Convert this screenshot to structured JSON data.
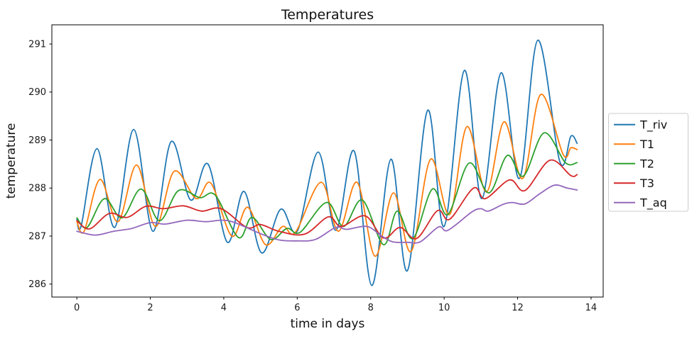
{
  "chart_data": {
    "type": "line",
    "title": "Temperatures",
    "xlabel": "time in days",
    "ylabel": "temperature",
    "xlim": [
      -0.68,
      14.33
    ],
    "ylim": [
      285.73,
      291.4
    ],
    "x_ticks": [
      0,
      2,
      4,
      6,
      8,
      10,
      12,
      14
    ],
    "y_ticks": [
      286,
      287,
      288,
      289,
      290,
      291
    ],
    "grid": false,
    "legend_position": "outside-center-right",
    "series": [
      {
        "name": "T_riv",
        "color": "#1f77b4",
        "points": [
          [
            0,
            287.35
          ],
          [
            0.12,
            287.22
          ],
          [
            0.55,
            288.82
          ],
          [
            1.03,
            287.18
          ],
          [
            1.55,
            289.22
          ],
          [
            2.07,
            287.1
          ],
          [
            2.57,
            288.97
          ],
          [
            3.1,
            287.75
          ],
          [
            3.57,
            288.5
          ],
          [
            4.1,
            286.87
          ],
          [
            4.55,
            287.93
          ],
          [
            5.03,
            286.65
          ],
          [
            5.55,
            287.56
          ],
          [
            6.0,
            287.1
          ],
          [
            6.57,
            288.75
          ],
          [
            7.05,
            287.12
          ],
          [
            7.55,
            288.77
          ],
          [
            8.03,
            285.97
          ],
          [
            8.55,
            288.6
          ],
          [
            9.0,
            286.28
          ],
          [
            9.55,
            289.62
          ],
          [
            10.0,
            287.2
          ],
          [
            10.55,
            290.45
          ],
          [
            11.02,
            287.78
          ],
          [
            11.55,
            290.4
          ],
          [
            12.05,
            288.2
          ],
          [
            12.55,
            291.08
          ],
          [
            13.15,
            288.55
          ],
          [
            13.45,
            289.08
          ],
          [
            13.62,
            288.93
          ]
        ]
      },
      {
        "name": "T1",
        "color": "#ff7f0e",
        "points": [
          [
            0,
            287.3
          ],
          [
            0.2,
            287.1
          ],
          [
            0.63,
            288.18
          ],
          [
            1.12,
            287.3
          ],
          [
            1.63,
            288.48
          ],
          [
            2.14,
            287.2
          ],
          [
            2.65,
            288.35
          ],
          [
            3.25,
            287.78
          ],
          [
            3.65,
            288.1
          ],
          [
            4.22,
            287.0
          ],
          [
            4.65,
            287.6
          ],
          [
            5.14,
            286.82
          ],
          [
            5.6,
            287.2
          ],
          [
            5.95,
            287.08
          ],
          [
            6.65,
            288.12
          ],
          [
            7.12,
            287.1
          ],
          [
            7.63,
            288.12
          ],
          [
            8.12,
            286.58
          ],
          [
            8.62,
            287.9
          ],
          [
            9.1,
            286.68
          ],
          [
            9.63,
            288.6
          ],
          [
            10.15,
            287.45
          ],
          [
            10.62,
            289.28
          ],
          [
            11.15,
            287.92
          ],
          [
            11.63,
            289.38
          ],
          [
            12.14,
            288.2
          ],
          [
            12.63,
            289.95
          ],
          [
            13.24,
            288.7
          ],
          [
            13.45,
            288.84
          ],
          [
            13.62,
            288.8
          ]
        ]
      },
      {
        "name": "T2",
        "color": "#2ca02c",
        "points": [
          [
            0,
            287.38
          ],
          [
            0.28,
            287.18
          ],
          [
            0.75,
            287.78
          ],
          [
            1.23,
            287.38
          ],
          [
            1.75,
            287.98
          ],
          [
            2.25,
            287.32
          ],
          [
            2.77,
            287.95
          ],
          [
            3.35,
            287.8
          ],
          [
            3.77,
            287.85
          ],
          [
            4.4,
            286.97
          ],
          [
            4.77,
            287.39
          ],
          [
            5.28,
            286.93
          ],
          [
            5.72,
            287.16
          ],
          [
            6.08,
            287.08
          ],
          [
            6.8,
            287.7
          ],
          [
            7.26,
            287.2
          ],
          [
            7.77,
            287.75
          ],
          [
            8.35,
            286.82
          ],
          [
            8.72,
            287.52
          ],
          [
            9.15,
            286.95
          ],
          [
            9.68,
            287.98
          ],
          [
            10.1,
            287.45
          ],
          [
            10.68,
            288.52
          ],
          [
            11.22,
            287.9
          ],
          [
            11.72,
            288.68
          ],
          [
            12.16,
            288.25
          ],
          [
            12.72,
            289.15
          ],
          [
            13.3,
            288.53
          ],
          [
            13.62,
            288.53
          ]
        ]
      },
      {
        "name": "T3",
        "color": "#d62728",
        "points": [
          [
            0,
            287.32
          ],
          [
            0.35,
            287.15
          ],
          [
            0.88,
            287.47
          ],
          [
            1.37,
            287.39
          ],
          [
            1.88,
            287.62
          ],
          [
            2.35,
            287.57
          ],
          [
            2.9,
            287.63
          ],
          [
            3.4,
            287.52
          ],
          [
            3.93,
            287.57
          ],
          [
            4.63,
            287.18
          ],
          [
            5.0,
            287.24
          ],
          [
            5.5,
            287.1
          ],
          [
            6.2,
            287.04
          ],
          [
            6.85,
            287.4
          ],
          [
            7.2,
            287.2
          ],
          [
            7.85,
            287.42
          ],
          [
            8.35,
            286.96
          ],
          [
            8.8,
            287.18
          ],
          [
            9.25,
            286.95
          ],
          [
            9.82,
            287.53
          ],
          [
            10.15,
            287.35
          ],
          [
            10.8,
            288.0
          ],
          [
            11.12,
            287.78
          ],
          [
            11.78,
            288.17
          ],
          [
            12.2,
            287.95
          ],
          [
            12.88,
            288.58
          ],
          [
            13.45,
            288.26
          ],
          [
            13.62,
            288.28
          ]
        ]
      },
      {
        "name": "T_aq",
        "color": "#9467bd",
        "points": [
          [
            0,
            287.1
          ],
          [
            0.5,
            287.02
          ],
          [
            1.0,
            287.1
          ],
          [
            1.5,
            287.16
          ],
          [
            2.0,
            287.28
          ],
          [
            2.4,
            287.25
          ],
          [
            3.0,
            287.33
          ],
          [
            3.5,
            287.3
          ],
          [
            3.95,
            287.33
          ],
          [
            4.3,
            287.28
          ],
          [
            5.0,
            287.05
          ],
          [
            5.5,
            286.92
          ],
          [
            6.0,
            286.9
          ],
          [
            6.5,
            286.93
          ],
          [
            7.05,
            287.18
          ],
          [
            7.35,
            287.14
          ],
          [
            7.9,
            287.2
          ],
          [
            8.3,
            287.0
          ],
          [
            8.6,
            286.88
          ],
          [
            9.0,
            286.87
          ],
          [
            9.35,
            286.88
          ],
          [
            9.85,
            287.19
          ],
          [
            10.1,
            287.12
          ],
          [
            10.75,
            287.5
          ],
          [
            11.0,
            287.57
          ],
          [
            11.2,
            287.52
          ],
          [
            11.6,
            287.66
          ],
          [
            11.85,
            287.7
          ],
          [
            12.2,
            287.67
          ],
          [
            12.6,
            287.88
          ],
          [
            13.0,
            288.06
          ],
          [
            13.35,
            288.0
          ],
          [
            13.62,
            287.96
          ]
        ]
      }
    ]
  }
}
